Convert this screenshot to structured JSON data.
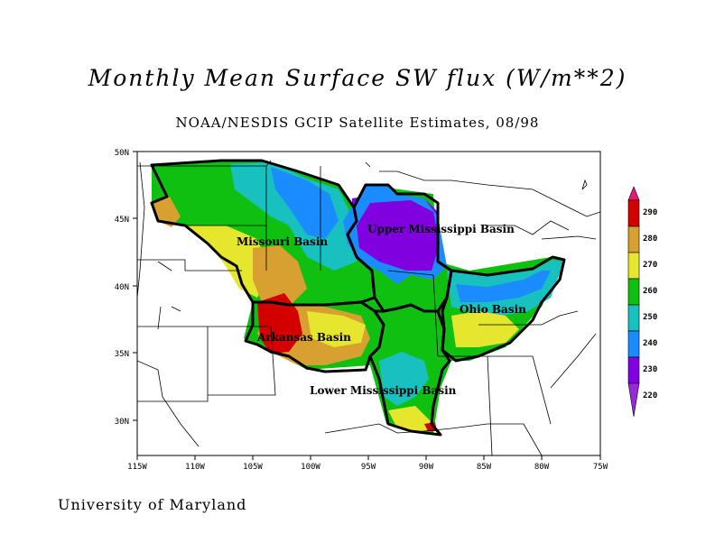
{
  "title": "Monthly Mean Surface SW flux (W/m**2)",
  "subtitle": "NOAA/NESDIS GCIP Satellite Estimates, 08/98",
  "credit": "University of Maryland",
  "map": {
    "lon_ticks": [
      "115W",
      "110W",
      "105W",
      "100W",
      "95W",
      "90W",
      "85W",
      "80W",
      "75W"
    ],
    "lat_ticks": [
      "30N",
      "35N",
      "40N",
      "45N",
      "50N"
    ],
    "basins": [
      "Missouri Basin",
      "Upper Mississippi Basin",
      "Ohio Basin",
      "Arkansas Basin",
      "Lower Mississippi Basin"
    ]
  },
  "colorbar": {
    "levels": [
      "290",
      "280",
      "270",
      "260",
      "250",
      "240",
      "230",
      "220"
    ],
    "colors": {
      "290": "#e8187a",
      "280": "#d40000",
      "270": "#d8a030",
      "260": "#e6e62e",
      "250": "#10c010",
      "240": "#18c0c0",
      "230": "#1a8cff",
      "220": "#8000e0",
      "below": "#9a28d8"
    }
  }
}
